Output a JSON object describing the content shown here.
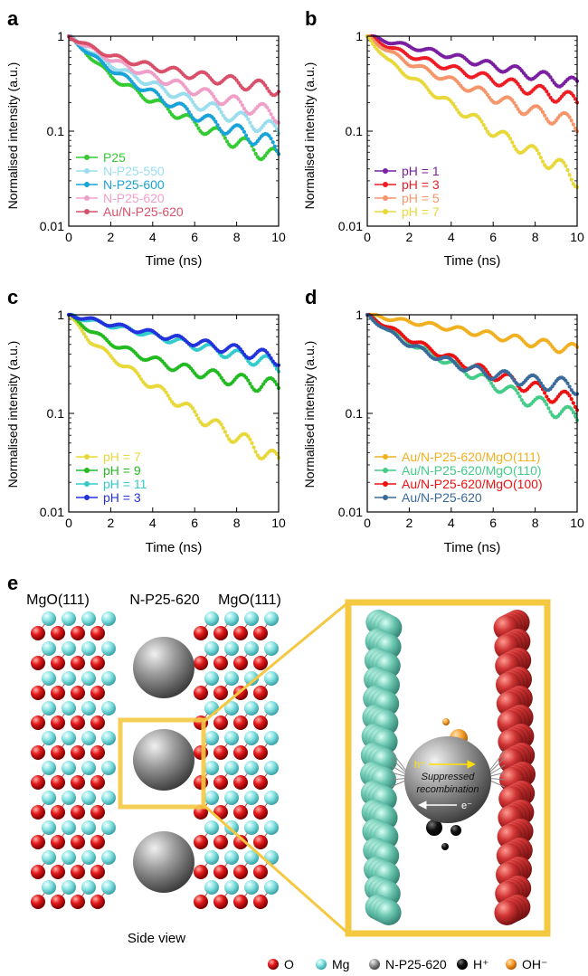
{
  "panel_labels": {
    "a": "a",
    "b": "b",
    "c": "c",
    "d": "d",
    "e": "e"
  },
  "axes": {
    "xlabel": "Time (ns)",
    "ylabel": "Normalised intensity (a.u.)",
    "x_ticks": [
      "0",
      "2",
      "4",
      "6",
      "8",
      "10"
    ],
    "y_ticks": [
      "1",
      "0.1",
      "0.01"
    ]
  },
  "chart_data": [
    {
      "panel": "a",
      "type": "line",
      "xlim": [
        0,
        10
      ],
      "ylim": [
        0.01,
        1
      ],
      "yscale": "log",
      "legend_position": "lower-left",
      "series": [
        {
          "name": "P25",
          "color": "#33cc33",
          "x": [
            0,
            1,
            2,
            3,
            4,
            5,
            6,
            7,
            8,
            9,
            10
          ],
          "values": [
            1,
            0.62,
            0.38,
            0.28,
            0.21,
            0.16,
            0.12,
            0.095,
            0.078,
            0.064,
            0.052
          ]
        },
        {
          "name": "N-P25-550",
          "color": "#99ddee",
          "x": [
            0,
            1,
            2,
            3,
            4,
            5,
            6,
            7,
            8,
            9,
            10
          ],
          "values": [
            1,
            0.7,
            0.5,
            0.39,
            0.31,
            0.25,
            0.2,
            0.17,
            0.14,
            0.12,
            0.1
          ]
        },
        {
          "name": "N-P25-600",
          "color": "#1aa3d9",
          "x": [
            0,
            1,
            2,
            3,
            4,
            5,
            6,
            7,
            8,
            9,
            10
          ],
          "values": [
            1,
            0.65,
            0.45,
            0.33,
            0.25,
            0.19,
            0.15,
            0.12,
            0.1,
            0.085,
            0.07
          ]
        },
        {
          "name": "N-P25-620",
          "color": "#f0a0c8",
          "x": [
            0,
            1,
            2,
            3,
            4,
            5,
            6,
            7,
            8,
            9,
            10
          ],
          "values": [
            1,
            0.75,
            0.57,
            0.46,
            0.38,
            0.32,
            0.27,
            0.23,
            0.2,
            0.17,
            0.15
          ]
        },
        {
          "name": "Au/N-P25-620",
          "color": "#d9506a",
          "x": [
            0,
            1,
            2,
            3,
            4,
            5,
            6,
            7,
            8,
            9,
            10
          ],
          "values": [
            1,
            0.78,
            0.62,
            0.54,
            0.48,
            0.43,
            0.39,
            0.36,
            0.33,
            0.3,
            0.28
          ]
        }
      ]
    },
    {
      "panel": "b",
      "type": "line",
      "xlim": [
        0,
        10
      ],
      "ylim": [
        0.01,
        1
      ],
      "yscale": "log",
      "legend_position": "lower-left",
      "series": [
        {
          "name": "pH = 1",
          "color": "#7a1fa2",
          "x": [
            0,
            1,
            2,
            3,
            4,
            5,
            6,
            7,
            8,
            9,
            10
          ],
          "values": [
            1,
            0.88,
            0.78,
            0.7,
            0.62,
            0.55,
            0.49,
            0.44,
            0.39,
            0.35,
            0.31
          ]
        },
        {
          "name": "pH = 3",
          "color": "#ee1c25",
          "x": [
            0,
            1,
            2,
            3,
            4,
            5,
            6,
            7,
            8,
            9,
            10
          ],
          "values": [
            1,
            0.78,
            0.63,
            0.54,
            0.46,
            0.4,
            0.35,
            0.31,
            0.27,
            0.24,
            0.21
          ]
        },
        {
          "name": "pH = 5",
          "color": "#f7956a",
          "x": [
            0,
            1,
            2,
            3,
            4,
            5,
            6,
            7,
            8,
            9,
            10
          ],
          "values": [
            1,
            0.7,
            0.52,
            0.42,
            0.34,
            0.28,
            0.23,
            0.19,
            0.16,
            0.14,
            0.12
          ]
        },
        {
          "name": "pH = 7",
          "color": "#e8d83a",
          "x": [
            0,
            1,
            2,
            3,
            4,
            5,
            6,
            7,
            8,
            9,
            10
          ],
          "values": [
            1,
            0.55,
            0.38,
            0.27,
            0.19,
            0.14,
            0.1,
            0.075,
            0.058,
            0.045,
            0.032
          ]
        }
      ]
    },
    {
      "panel": "c",
      "type": "line",
      "xlim": [
        0,
        10
      ],
      "ylim": [
        0.01,
        1
      ],
      "yscale": "log",
      "legend_position": "lower-left",
      "series": [
        {
          "name": "pH = 7",
          "color": "#e8d83a",
          "x": [
            0,
            1,
            2,
            3,
            4,
            5,
            6,
            7,
            8,
            9,
            10
          ],
          "values": [
            1,
            0.55,
            0.38,
            0.27,
            0.19,
            0.14,
            0.1,
            0.075,
            0.058,
            0.045,
            0.032
          ]
        },
        {
          "name": "pH = 9",
          "color": "#22bb22",
          "x": [
            0,
            1,
            2,
            3,
            4,
            5,
            6,
            7,
            8,
            9,
            10
          ],
          "values": [
            1,
            0.7,
            0.52,
            0.42,
            0.35,
            0.3,
            0.27,
            0.24,
            0.22,
            0.2,
            0.19
          ]
        },
        {
          "name": "pH = 11",
          "color": "#33cccc",
          "x": [
            0,
            1,
            2,
            3,
            4,
            5,
            6,
            7,
            8,
            9,
            10
          ],
          "values": [
            1,
            0.88,
            0.78,
            0.7,
            0.62,
            0.55,
            0.49,
            0.44,
            0.39,
            0.35,
            0.31
          ]
        },
        {
          "name": "pH = 3",
          "color": "#2233dd",
          "x": [
            0,
            1,
            2,
            3,
            4,
            5,
            6,
            7,
            8,
            9,
            10
          ],
          "values": [
            1,
            0.9,
            0.8,
            0.72,
            0.65,
            0.58,
            0.53,
            0.48,
            0.44,
            0.4,
            0.36
          ]
        }
      ]
    },
    {
      "panel": "d",
      "type": "line",
      "xlim": [
        0,
        10
      ],
      "ylim": [
        0.01,
        1
      ],
      "yscale": "log",
      "legend_position": "lower-left",
      "series": [
        {
          "name": "Au/N-P25-620/MgO(111)",
          "color": "#f0b020",
          "x": [
            0,
            1,
            2,
            3,
            4,
            5,
            6,
            7,
            8,
            9,
            10
          ],
          "values": [
            1,
            0.92,
            0.85,
            0.79,
            0.73,
            0.67,
            0.62,
            0.57,
            0.52,
            0.48,
            0.44
          ]
        },
        {
          "name": "Au/N-P25-620/MgO(110)",
          "color": "#44cc88",
          "x": [
            0,
            1,
            2,
            3,
            4,
            5,
            6,
            7,
            8,
            9,
            10
          ],
          "values": [
            1,
            0.72,
            0.53,
            0.41,
            0.32,
            0.25,
            0.2,
            0.16,
            0.13,
            0.11,
            0.09
          ]
        },
        {
          "name": "Au/N-P25-620/MgO(100)",
          "color": "#ee1111",
          "x": [
            0,
            1,
            2,
            3,
            4,
            5,
            6,
            7,
            8,
            9,
            10
          ],
          "values": [
            1,
            0.75,
            0.57,
            0.45,
            0.36,
            0.3,
            0.25,
            0.21,
            0.18,
            0.15,
            0.13
          ]
        },
        {
          "name": "Au/N-P25-620",
          "color": "#3a6a9a",
          "x": [
            0,
            1,
            2,
            3,
            4,
            5,
            6,
            7,
            8,
            9,
            10
          ],
          "values": [
            1,
            0.68,
            0.5,
            0.4,
            0.33,
            0.28,
            0.25,
            0.23,
            0.21,
            0.2,
            0.19
          ]
        }
      ]
    }
  ],
  "panel_e": {
    "header_left": "MgO(111)",
    "header_center": "N-P25-620",
    "header_right": "MgO(111)",
    "caption": "Side view",
    "h_plus": "h⁺",
    "e_minus": "e⁻",
    "sphere_text_1": "Suppressed",
    "sphere_text_2": "recombination",
    "colors": {
      "O": "#e41a1c",
      "Mg": "#7fe0e0",
      "sphere": "#8a8a8a",
      "frame": "#f5c842",
      "Hplus": "#111111",
      "OHminus": "#f5a030"
    },
    "legend": [
      {
        "key": "O",
        "label": "O",
        "icon": "red-ball-icon"
      },
      {
        "key": "Mg",
        "label": "Mg",
        "icon": "cyan-ball-icon"
      },
      {
        "key": "NP",
        "label": "N-P25-620",
        "icon": "grey-ball-icon"
      },
      {
        "key": "H",
        "label": "H⁺",
        "icon": "black-ball-icon"
      },
      {
        "key": "OH",
        "label": "OH⁻",
        "icon": "orange-ball-icon"
      }
    ]
  }
}
